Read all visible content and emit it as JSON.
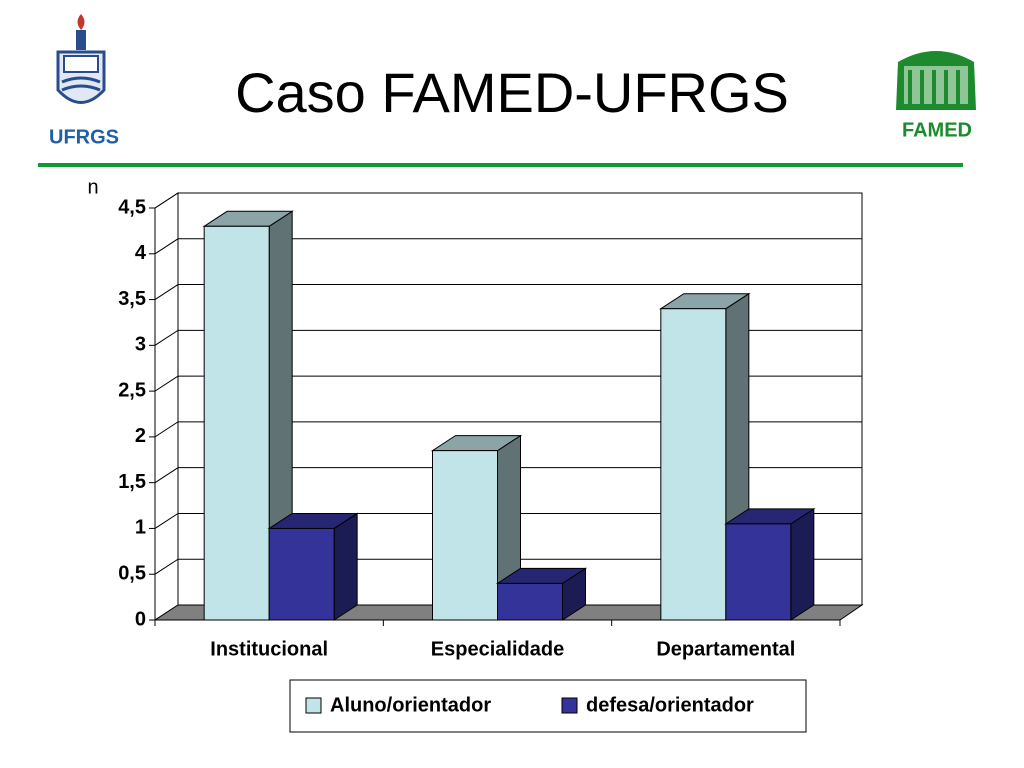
{
  "header": {
    "left_logo_text": "UFRGS",
    "right_logo_text": "FAMED"
  },
  "chart_data": {
    "type": "bar3d",
    "title": "Caso FAMED-UFRGS",
    "y_label": "n",
    "categories": [
      "Institucional",
      "Especialidade",
      "Departamental"
    ],
    "series": [
      {
        "name": "Aluno/orientador",
        "color": "#c0e4e8",
        "values": [
          4.3,
          1.85,
          3.4
        ]
      },
      {
        "name": "defesa/orientador",
        "color": "#333399",
        "values": [
          1,
          0.4,
          1.05
        ]
      }
    ],
    "ylim": [
      0,
      4.5
    ],
    "yticks": [
      0,
      {
        "value": 0.5,
        "label": "0,5"
      },
      1,
      {
        "value": 1.5,
        "label": "1,5"
      },
      2,
      {
        "value": 2.5,
        "label": "2,5"
      },
      3,
      {
        "value": 3.5,
        "label": "3,5"
      },
      4,
      {
        "value": 4.5,
        "label": "4,5"
      }
    ],
    "grid": true,
    "legend": "bottom"
  }
}
